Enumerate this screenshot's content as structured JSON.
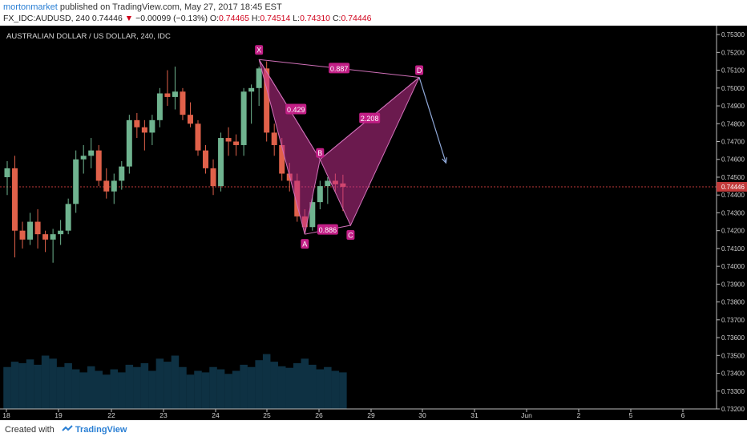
{
  "header": {
    "author": "mortonmarket",
    "published_text": "published on TradingView.com, May 27, 2017 18:45 EST",
    "symbol": "FX_IDC:AUDUSD, 240",
    "last": "0.74446",
    "change_arrow": "▼",
    "change": "−0.00099 (−0.13%)",
    "open_label": "O:",
    "open": "0.74465",
    "high_label": "H:",
    "high": "0.74514",
    "low_label": "L:",
    "low": "0.74310",
    "close_label": "C:",
    "close": "0.74446"
  },
  "footer": {
    "created_with": "Created with",
    "brand": "TradingView",
    "logo_icon": "tradingview-logo-icon"
  },
  "colors": {
    "background": "#000000",
    "up_candle": "#6fb38f",
    "down_candle": "#e0614a",
    "pattern_fill": "#c2308e",
    "pattern_line": "#d070b8",
    "label_bg": "#c21f86",
    "projection_arrow": "#8fa8d8",
    "price_line": "#c23a3a",
    "volume": "#1a5a7a"
  },
  "chart_data": {
    "type": "candlestick",
    "title": "AUSTRALIAN DOLLAR / US DOLLAR, 240, IDC",
    "ylim": [
      0.732,
      0.7535
    ],
    "y_ticks": [
      "0.75300",
      "0.75200",
      "0.75100",
      "0.75000",
      "0.74900",
      "0.74800",
      "0.74700",
      "0.74600",
      "0.74500",
      "0.74400",
      "0.74300",
      "0.74200",
      "0.74100",
      "0.74000",
      "0.73900",
      "0.73800",
      "0.73700",
      "0.73600",
      "0.73500",
      "0.73400",
      "0.73300",
      "0.73200"
    ],
    "current_price": "0.74446",
    "x_ticks": [
      "18",
      "19",
      "22",
      "23",
      "24",
      "25",
      "26",
      "29",
      "30",
      "31",
      "Jun",
      "2",
      "5",
      "6"
    ],
    "candles": [
      [
        0.745,
        0.7459,
        0.744,
        0.7455
      ],
      [
        0.7455,
        0.7462,
        0.7405,
        0.742
      ],
      [
        0.742,
        0.7425,
        0.741,
        0.7415
      ],
      [
        0.7415,
        0.743,
        0.7412,
        0.7425
      ],
      [
        0.7425,
        0.7432,
        0.741,
        0.7418
      ],
      [
        0.7418,
        0.742,
        0.7408,
        0.7415
      ],
      [
        0.7415,
        0.7421,
        0.7402,
        0.7418
      ],
      [
        0.7418,
        0.7426,
        0.7412,
        0.742
      ],
      [
        0.742,
        0.7438,
        0.7418,
        0.7435
      ],
      [
        0.7435,
        0.7465,
        0.743,
        0.746
      ],
      [
        0.746,
        0.7468,
        0.7452,
        0.7462
      ],
      [
        0.7462,
        0.7472,
        0.7455,
        0.7465
      ],
      [
        0.7465,
        0.7468,
        0.7445,
        0.7448
      ],
      [
        0.7448,
        0.7455,
        0.7438,
        0.7442
      ],
      [
        0.7442,
        0.7452,
        0.7435,
        0.7448
      ],
      [
        0.7448,
        0.7459,
        0.7443,
        0.7456
      ],
      [
        0.7456,
        0.7485,
        0.7452,
        0.7482
      ],
      [
        0.7482,
        0.7486,
        0.7472,
        0.7478
      ],
      [
        0.7478,
        0.7482,
        0.7465,
        0.7475
      ],
      [
        0.7475,
        0.7485,
        0.7468,
        0.7482
      ],
      [
        0.7482,
        0.75,
        0.7478,
        0.7497
      ],
      [
        0.7497,
        0.751,
        0.749,
        0.7495
      ],
      [
        0.7495,
        0.7512,
        0.7488,
        0.7498
      ],
      [
        0.7498,
        0.75,
        0.7482,
        0.7485
      ],
      [
        0.7485,
        0.7492,
        0.7478,
        0.748
      ],
      [
        0.748,
        0.7482,
        0.7462,
        0.7465
      ],
      [
        0.7465,
        0.7468,
        0.7452,
        0.7455
      ],
      [
        0.7455,
        0.746,
        0.744,
        0.7445
      ],
      [
        0.7445,
        0.7475,
        0.7442,
        0.7472
      ],
      [
        0.7472,
        0.7478,
        0.7462,
        0.747
      ],
      [
        0.747,
        0.7474,
        0.7462,
        0.7468
      ],
      [
        0.7468,
        0.75,
        0.7462,
        0.7498
      ],
      [
        0.7498,
        0.7502,
        0.748,
        0.75
      ],
      [
        0.75,
        0.7512,
        0.749,
        0.7511
      ],
      [
        0.7511,
        0.7515,
        0.747,
        0.7475
      ],
      [
        0.7475,
        0.748,
        0.7462,
        0.7468
      ],
      [
        0.7468,
        0.7472,
        0.7448,
        0.7452
      ],
      [
        0.7452,
        0.7458,
        0.7442,
        0.7448
      ],
      [
        0.7448,
        0.7452,
        0.7425,
        0.7428
      ],
      [
        0.7428,
        0.7432,
        0.7418,
        0.7422
      ],
      [
        0.7422,
        0.744,
        0.742,
        0.7436
      ],
      [
        0.7436,
        0.7448,
        0.7432,
        0.7445
      ],
      [
        0.7445,
        0.745,
        0.7435,
        0.7448
      ],
      [
        0.7448,
        0.7452,
        0.7442,
        0.7446
      ],
      [
        0.74465,
        0.74514,
        0.7431,
        0.74446
      ]
    ],
    "volume": [
      0.55,
      0.62,
      0.6,
      0.65,
      0.58,
      0.7,
      0.66,
      0.55,
      0.6,
      0.52,
      0.48,
      0.56,
      0.5,
      0.45,
      0.52,
      0.48,
      0.58,
      0.55,
      0.6,
      0.5,
      0.66,
      0.62,
      0.7,
      0.55,
      0.45,
      0.5,
      0.48,
      0.55,
      0.52,
      0.46,
      0.5,
      0.58,
      0.55,
      0.64,
      0.72,
      0.62,
      0.56,
      0.54,
      0.6,
      0.66,
      0.58,
      0.52,
      0.55,
      0.5,
      0.48
    ],
    "pattern": {
      "points": [
        {
          "name": "X",
          "t": 33,
          "price": 0.7516
        },
        {
          "name": "A",
          "t": 39,
          "price": 0.7418
        },
        {
          "name": "B",
          "t": 41,
          "price": 0.746
        },
        {
          "name": "C",
          "t": 45,
          "price": 0.7423
        },
        {
          "name": "D",
          "t": 54,
          "price": 0.7506
        }
      ],
      "ratios": [
        {
          "label": "0.429",
          "from": "X",
          "to": "B"
        },
        {
          "label": "0.887",
          "from": "X",
          "to": "D"
        },
        {
          "label": "0.886",
          "from": "A",
          "to": "C"
        },
        {
          "label": "2.208",
          "from": "B",
          "to": "D"
        }
      ],
      "projection_to": {
        "t": 57.5,
        "price": 0.7458
      }
    }
  }
}
